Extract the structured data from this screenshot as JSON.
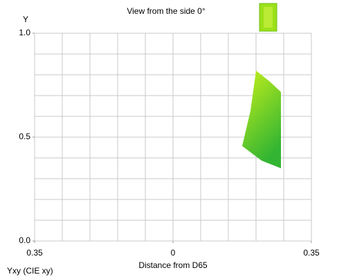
{
  "chart_data": {
    "type": "polygon",
    "title": "View from the side 0°",
    "ylabel": "Y",
    "xlabel": "Distance from D65",
    "footer": "Yxy (CIE xy)",
    "x": [
      0.21,
      0.245,
      0.273,
      0.273,
      0.224,
      0.175,
      0.196
    ],
    "y": [
      0.82,
      0.767,
      0.717,
      0.35,
      0.387,
      0.457,
      0.627
    ],
    "colors": [
      "#c6f01a",
      "#33b533"
    ],
    "xlim": [
      -0.35,
      0.35
    ],
    "ylim": [
      0,
      1
    ],
    "xticks": [
      {
        "value": -0.35,
        "label": "0.35"
      },
      0,
      0.35
    ],
    "yticks": [
      {
        "value": 0,
        "label": "0.0"
      },
      0.5,
      {
        "value": 1,
        "label": "1.0"
      }
    ],
    "xgrid": [
      -0.35,
      -0.28,
      -0.21,
      -0.14,
      -0.07,
      0,
      0.07,
      0.14,
      0.21,
      0.28,
      0.35
    ],
    "ygrid": [
      0,
      0.1,
      0.2,
      0.3,
      0.4,
      0.5,
      0.6,
      0.7,
      0.8,
      0.9,
      1
    ],
    "grid": true
  }
}
